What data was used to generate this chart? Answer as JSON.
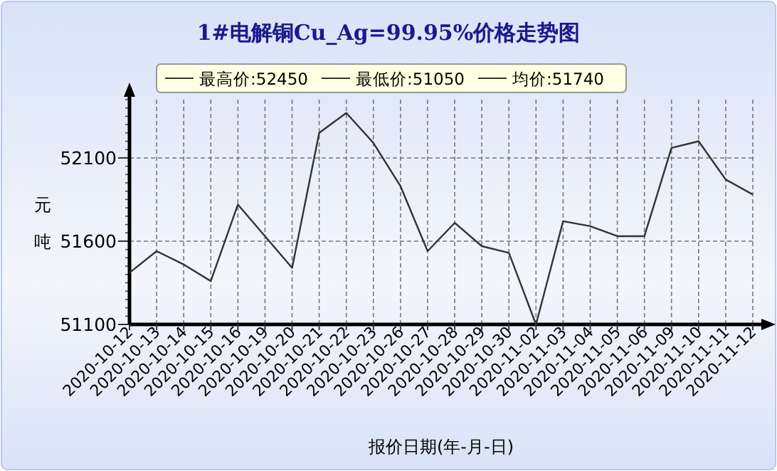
{
  "chart_data": {
    "type": "line",
    "title": "1#电解铜Cu_Ag=99.95%价格走势图",
    "xlabel": "报价日期(年-月-日)",
    "ylabel": "元吨",
    "annotations": [
      "最高价:52450",
      "最低价:51050",
      "均价:51740"
    ],
    "categories": [
      "2020-10-12",
      "2020-10-13",
      "2020-10-14",
      "2020-10-15",
      "2020-10-16",
      "2020-10-19",
      "2020-10-20",
      "2020-10-21",
      "2020-10-22",
      "2020-10-23",
      "2020-10-26",
      "2020-10-27",
      "2020-10-28",
      "2020-10-29",
      "2020-10-30",
      "2020-11-02",
      "2020-11-03",
      "2020-11-04",
      "2020-11-05",
      "2020-11-06",
      "2020-11-09",
      "2020-11-10",
      "2020-11-11",
      "2020-11-12"
    ],
    "series": [
      {
        "color": "#333333",
        "values": [
          51410,
          51540,
          51460,
          51360,
          51820,
          51630,
          51440,
          52250,
          52370,
          52190,
          51930,
          51540,
          51710,
          51570,
          51530,
          51100,
          51720,
          51690,
          51630,
          51630,
          52160,
          52200,
          51970,
          51880
        ]
      }
    ],
    "ylim": [
      51100,
      52450
    ],
    "yticks": [
      51100,
      51600,
      52100
    ],
    "grid": true,
    "marker": "none",
    "line_style": "solid"
  }
}
